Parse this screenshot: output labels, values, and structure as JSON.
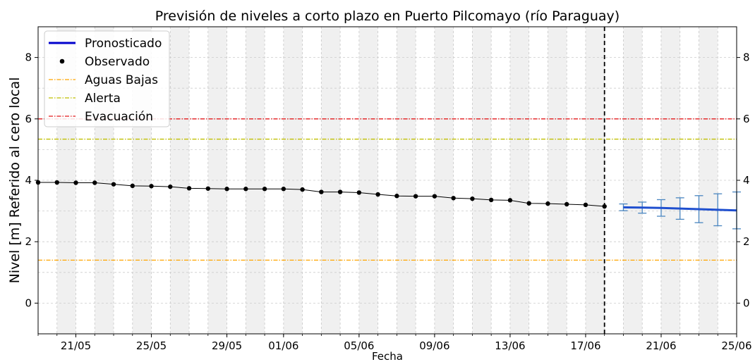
{
  "chart_data": {
    "type": "line",
    "title": "Previsión de niveles a corto plazo en Puerto Pilcomayo (río Paraguay)",
    "xlabel": "Fecha",
    "ylabel": "Nivel [m] Referido al cero local",
    "ylim": [
      -1.0,
      9.0
    ],
    "yticks": [
      0,
      2,
      4,
      6,
      8
    ],
    "xlim": [
      "2025-05-19",
      "2025-06-25"
    ],
    "xticks": [
      "21/05",
      "25/05",
      "29/05",
      "01/06",
      "05/06",
      "09/06",
      "13/06",
      "17/06",
      "21/06",
      "25/06"
    ],
    "xtick_dates": [
      "2025-05-21",
      "2025-05-25",
      "2025-05-29",
      "2025-06-01",
      "2025-06-05",
      "2025-06-09",
      "2025-06-13",
      "2025-06-17",
      "2025-06-21",
      "2025-06-25"
    ],
    "forecast_start": "2025-06-18",
    "grid": true,
    "alternating_day_shading": true,
    "legend_position": "top-left",
    "series": [
      {
        "name": "Observado",
        "kind": "points-line",
        "color": "#000000",
        "x": [
          "2025-05-19",
          "2025-05-20",
          "2025-05-21",
          "2025-05-22",
          "2025-05-23",
          "2025-05-24",
          "2025-05-25",
          "2025-05-26",
          "2025-05-27",
          "2025-05-28",
          "2025-05-29",
          "2025-05-30",
          "2025-05-31",
          "2025-06-01",
          "2025-06-02",
          "2025-06-03",
          "2025-06-04",
          "2025-06-05",
          "2025-06-06",
          "2025-06-07",
          "2025-06-08",
          "2025-06-09",
          "2025-06-10",
          "2025-06-11",
          "2025-06-12",
          "2025-06-13",
          "2025-06-14",
          "2025-06-15",
          "2025-06-16",
          "2025-06-17",
          "2025-06-18"
        ],
        "y": [
          3.93,
          3.93,
          3.92,
          3.92,
          3.87,
          3.82,
          3.81,
          3.79,
          3.74,
          3.73,
          3.72,
          3.72,
          3.72,
          3.72,
          3.7,
          3.62,
          3.62,
          3.6,
          3.54,
          3.49,
          3.48,
          3.48,
          3.42,
          3.4,
          3.36,
          3.35,
          3.25,
          3.24,
          3.22,
          3.2,
          3.15
        ]
      },
      {
        "name": "Pronosticado",
        "kind": "line-with-errorbars",
        "color": "#1f4fcf",
        "errorbar_color": "#4a86c0",
        "x": [
          "2025-06-19",
          "2025-06-20",
          "2025-06-21",
          "2025-06-22",
          "2025-06-23",
          "2025-06-24",
          "2025-06-25"
        ],
        "y": [
          3.12,
          3.11,
          3.1,
          3.08,
          3.06,
          3.04,
          3.02
        ],
        "yerr_low": [
          3.01,
          2.93,
          2.83,
          2.73,
          2.62,
          2.52,
          2.42
        ],
        "yerr_high": [
          3.23,
          3.29,
          3.37,
          3.43,
          3.5,
          3.56,
          3.62
        ]
      }
    ],
    "thresholds": [
      {
        "name": "Aguas Bajas",
        "value": 1.4,
        "color": "#ffa500"
      },
      {
        "name": "Alerta",
        "value": 5.34,
        "color": "#bfbf00"
      },
      {
        "name": "Evacuación",
        "value": 6.0,
        "color": "#e41a1c"
      }
    ]
  }
}
